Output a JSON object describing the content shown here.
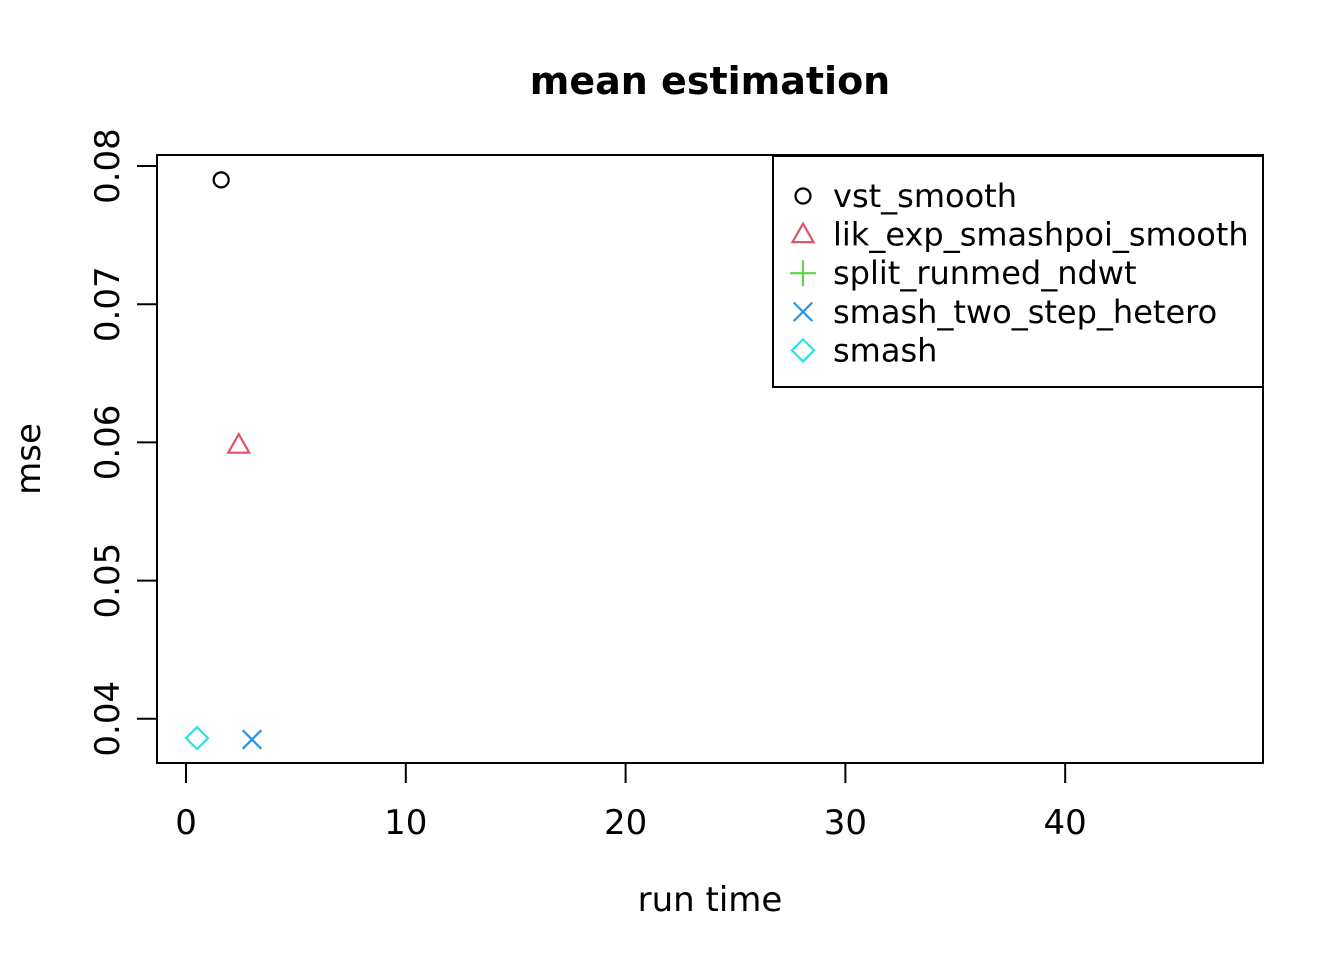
{
  "chart_data": {
    "type": "scatter",
    "title": "mean estimation",
    "xlabel": "run time",
    "ylabel": "mse",
    "xlim": [
      -1.32,
      49.0
    ],
    "ylim": [
      0.0368,
      0.0808
    ],
    "xticks": [
      0,
      10,
      20,
      30,
      40
    ],
    "xtick_labels": [
      "0",
      "10",
      "20",
      "30",
      "40"
    ],
    "yticks": [
      0.04,
      0.05,
      0.06,
      0.07,
      0.08
    ],
    "ytick_labels": [
      "0.04",
      "0.05",
      "0.06",
      "0.07",
      "0.08"
    ],
    "grid": false,
    "legend_position": "topright",
    "plot_border_color": "#000000",
    "series": [
      {
        "name": "vst_smooth",
        "marker": "circle",
        "color": "#000000",
        "points": [
          [
            1.6,
            0.079
          ]
        ]
      },
      {
        "name": "lik_exp_smashpoi_smooth",
        "marker": "triangle",
        "color": "#DF536B",
        "points": [
          [
            2.4,
            0.0598
          ]
        ]
      },
      {
        "name": "split_runmed_ndwt",
        "marker": "plus",
        "color": "#61D04F",
        "points": []
      },
      {
        "name": "smash_two_step_hetero",
        "marker": "x",
        "color": "#2297E6",
        "points": [
          [
            3.0,
            0.0385
          ]
        ]
      },
      {
        "name": "smash",
        "marker": "diamond",
        "color": "#28E2E5",
        "points": [
          [
            0.5,
            0.0386
          ]
        ]
      }
    ]
  }
}
